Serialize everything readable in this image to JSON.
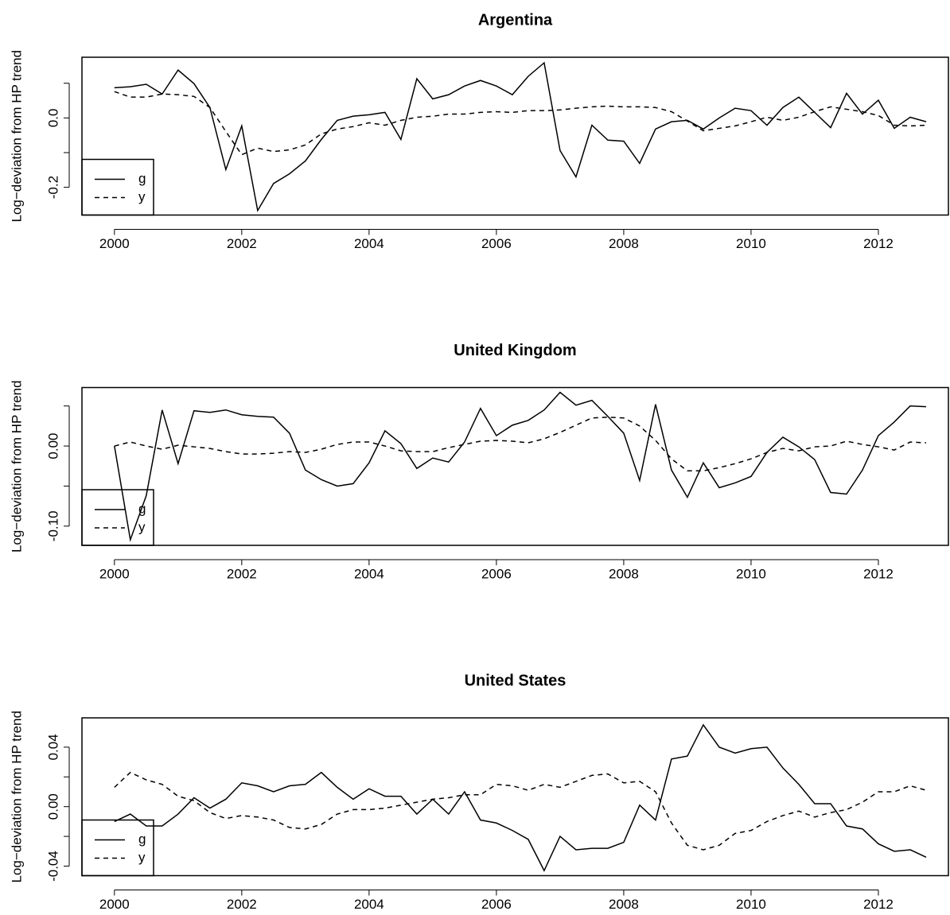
{
  "chart_data": [
    {
      "type": "line",
      "title": "Argentina",
      "y_label": "Log−deviation from HP trend",
      "x": [
        2000,
        2000.25,
        2000.5,
        2000.75,
        2001,
        2001.25,
        2001.5,
        2001.75,
        2002,
        2002.25,
        2002.5,
        2002.75,
        2003,
        2003.25,
        2003.5,
        2003.75,
        2004,
        2004.25,
        2004.5,
        2004.75,
        2005,
        2005.25,
        2005.5,
        2005.75,
        2006,
        2006.25,
        2006.5,
        2006.75,
        2007,
        2007.25,
        2007.5,
        2007.75,
        2008,
        2008.25,
        2008.5,
        2008.75,
        2009,
        2009.25,
        2009.5,
        2009.75,
        2010,
        2010.25,
        2010.5,
        2010.75,
        2011,
        2011.25,
        2011.5,
        2011.75,
        2012,
        2012.25,
        2012.5,
        2012.75
      ],
      "series": [
        {
          "name": "g",
          "color": "#000000",
          "linestyle": "solid",
          "values": [
            0.087,
            0.09,
            0.097,
            0.069,
            0.138,
            0.099,
            0.03,
            -0.149,
            -0.023,
            -0.267,
            -0.189,
            -0.161,
            -0.124,
            -0.062,
            -0.007,
            0.005,
            0.009,
            0.016,
            -0.062,
            0.113,
            0.055,
            0.067,
            0.092,
            0.108,
            0.092,
            0.067,
            0.12,
            0.159,
            -0.094,
            -0.17,
            -0.021,
            -0.064,
            -0.067,
            -0.131,
            -0.032,
            -0.011,
            -0.007,
            -0.032,
            0,
            0.028,
            0.021,
            -0.021,
            0.03,
            0.06,
            0.016,
            -0.028,
            0.071,
            0.011,
            0.051,
            -0.03,
            0.002,
            -0.011
          ]
        },
        {
          "name": "y",
          "color": "#000000",
          "linestyle": "dashed",
          "values": [
            0.076,
            0.06,
            0.06,
            0.069,
            0.067,
            0.062,
            0.03,
            -0.039,
            -0.106,
            -0.087,
            -0.097,
            -0.092,
            -0.078,
            -0.046,
            -0.032,
            -0.025,
            -0.014,
            -0.021,
            -0.007,
            0.002,
            0.005,
            0.011,
            0.011,
            0.016,
            0.018,
            0.016,
            0.021,
            0.021,
            0.023,
            0.028,
            0.032,
            0.034,
            0.032,
            0.032,
            0.03,
            0.018,
            -0.009,
            -0.037,
            -0.03,
            -0.023,
            -0.011,
            0.002,
            -0.007,
            0.002,
            0.018,
            0.032,
            0.025,
            0.018,
            0.007,
            -0.021,
            -0.023,
            -0.021
          ]
        }
      ],
      "xlim": [
        1999.49,
        2013.1
      ],
      "xticks": [
        2000,
        2002,
        2004,
        2006,
        2008,
        2010,
        2012
      ],
      "ylim": [
        -0.28,
        0.175
      ],
      "yticks": [
        -0.2,
        {
          "value": -0.1,
          "label": null
        },
        {
          "value": 0,
          "label": "0.0"
        },
        {
          "value": 0.1,
          "label": null
        }
      ],
      "legend": "bottomleft"
    },
    {
      "type": "line",
      "title": "United Kingdom",
      "y_label": "Log−deviation from HP trend",
      "x": [
        2000,
        2000.25,
        2000.5,
        2000.75,
        2001,
        2001.25,
        2001.5,
        2001.75,
        2002,
        2002.25,
        2002.5,
        2002.75,
        2003,
        2003.25,
        2003.5,
        2003.75,
        2004,
        2004.25,
        2004.5,
        2004.75,
        2005,
        2005.25,
        2005.5,
        2005.75,
        2006,
        2006.25,
        2006.5,
        2006.75,
        2007,
        2007.25,
        2007.5,
        2007.75,
        2008,
        2008.25,
        2008.5,
        2008.75,
        2009,
        2009.25,
        2009.5,
        2009.75,
        2010,
        2010.25,
        2010.5,
        2010.75,
        2011,
        2011.25,
        2011.5,
        2011.75,
        2012,
        2012.25,
        2012.5,
        2012.75
      ],
      "series": [
        {
          "name": "g",
          "color": "#000000",
          "linestyle": "solid",
          "values": [
            0,
            -0.117,
            -0.062,
            0.045,
            -0.022,
            0.044,
            0.042,
            0.045,
            0.039,
            0.037,
            0.036,
            0.016,
            -0.03,
            -0.042,
            -0.05,
            -0.047,
            -0.021,
            0.019,
            0.003,
            -0.028,
            -0.015,
            -0.02,
            0.005,
            0.047,
            0.013,
            0.026,
            0.032,
            0.045,
            0.067,
            0.051,
            0.057,
            0.037,
            0.016,
            -0.043,
            0.052,
            -0.03,
            -0.064,
            -0.021,
            -0.052,
            -0.046,
            -0.038,
            -0.008,
            0.011,
            -0.001,
            -0.017,
            -0.058,
            -0.06,
            -0.03,
            0.013,
            0.03,
            0.05,
            0.049
          ]
        },
        {
          "name": "y",
          "color": "#000000",
          "linestyle": "dashed",
          "values": [
            0,
            0.005,
            0,
            -0.004,
            0.001,
            -0.001,
            -0.003,
            -0.007,
            -0.01,
            -0.01,
            -0.009,
            -0.007,
            -0.008,
            -0.004,
            0.002,
            0.005,
            0.005,
            0,
            -0.006,
            -0.007,
            -0.007,
            -0.002,
            0.002,
            0.006,
            0.007,
            0.006,
            0.004,
            0.009,
            0.017,
            0.026,
            0.035,
            0.036,
            0.035,
            0.025,
            0.007,
            -0.016,
            -0.031,
            -0.031,
            -0.027,
            -0.022,
            -0.016,
            -0.008,
            -0.003,
            -0.006,
            -0.001,
            0,
            0.006,
            0.002,
            -0.001,
            -0.005,
            0.005,
            0.004
          ]
        }
      ],
      "xlim": [
        1999.49,
        2013.1
      ],
      "xticks": [
        2000,
        2002,
        2004,
        2006,
        2008,
        2010,
        2012
      ],
      "ylim": [
        -0.124,
        0.073
      ],
      "yticks": [
        {
          "value": -0.1,
          "label": "-0.10"
        },
        {
          "value": -0.05,
          "label": null
        },
        {
          "value": 0,
          "label": "0.00"
        },
        {
          "value": 0.05,
          "label": null
        }
      ],
      "legend": "bottomleft"
    },
    {
      "type": "line",
      "title": "United States",
      "y_label": "Log−deviation from HP trend",
      "x": [
        2000,
        2000.25,
        2000.5,
        2000.75,
        2001,
        2001.25,
        2001.5,
        2001.75,
        2002,
        2002.25,
        2002.5,
        2002.75,
        2003,
        2003.25,
        2003.5,
        2003.75,
        2004,
        2004.25,
        2004.5,
        2004.75,
        2005,
        2005.25,
        2005.5,
        2005.75,
        2006,
        2006.25,
        2006.5,
        2006.75,
        2007,
        2007.25,
        2007.5,
        2007.75,
        2008,
        2008.25,
        2008.5,
        2008.75,
        2009,
        2009.25,
        2009.5,
        2009.75,
        2010,
        2010.25,
        2010.5,
        2010.75,
        2011,
        2011.25,
        2011.5,
        2011.75,
        2012,
        2012.25,
        2012.5,
        2012.75
      ],
      "series": [
        {
          "name": "g",
          "color": "#000000",
          "linestyle": "solid",
          "values": [
            -0.01,
            -0.005,
            -0.013,
            -0.013,
            -0.005,
            0.006,
            -0.001,
            0.005,
            0.016,
            0.014,
            0.01,
            0.014,
            0.015,
            0.023,
            0.013,
            0.005,
            0.012,
            0.007,
            0.007,
            -0.005,
            0.005,
            -0.005,
            0.01,
            -0.009,
            -0.011,
            -0.016,
            -0.022,
            -0.043,
            -0.02,
            -0.029,
            -0.028,
            -0.028,
            -0.024,
            0.001,
            -0.009,
            0.032,
            0.034,
            0.055,
            0.04,
            0.036,
            0.039,
            0.04,
            0.026,
            0.015,
            0.002,
            0.002,
            -0.013,
            -0.015,
            -0.025,
            -0.03,
            -0.029,
            -0.034
          ]
        },
        {
          "name": "y",
          "color": "#000000",
          "linestyle": "dashed",
          "values": [
            0.013,
            0.023,
            0.018,
            0.015,
            0.007,
            0.004,
            -0.004,
            -0.008,
            -0.006,
            -0.007,
            -0.009,
            -0.014,
            -0.015,
            -0.012,
            -0.005,
            -0.002,
            -0.002,
            -0.001,
            0.001,
            0.003,
            0.005,
            0.006,
            0.008,
            0.008,
            0.015,
            0.014,
            0.011,
            0.015,
            0.013,
            0.017,
            0.021,
            0.022,
            0.016,
            0.017,
            0.01,
            -0.011,
            -0.026,
            -0.029,
            -0.026,
            -0.018,
            -0.016,
            -0.01,
            -0.006,
            -0.003,
            -0.007,
            -0.004,
            -0.002,
            0.003,
            0.01,
            0.01,
            0.014,
            0.011
          ]
        }
      ],
      "xlim": [
        1999.49,
        2013.1
      ],
      "xticks": [
        2000,
        2002,
        2004,
        2006,
        2008,
        2010,
        2012
      ],
      "ylim": [
        -0.0464,
        0.0597
      ],
      "yticks": [
        -0.04,
        {
          "value": -0.02,
          "label": null
        },
        {
          "value": 0,
          "label": "0.00"
        },
        {
          "value": 0.02,
          "label": null
        },
        0.04
      ],
      "legend": "bottomleft"
    }
  ]
}
